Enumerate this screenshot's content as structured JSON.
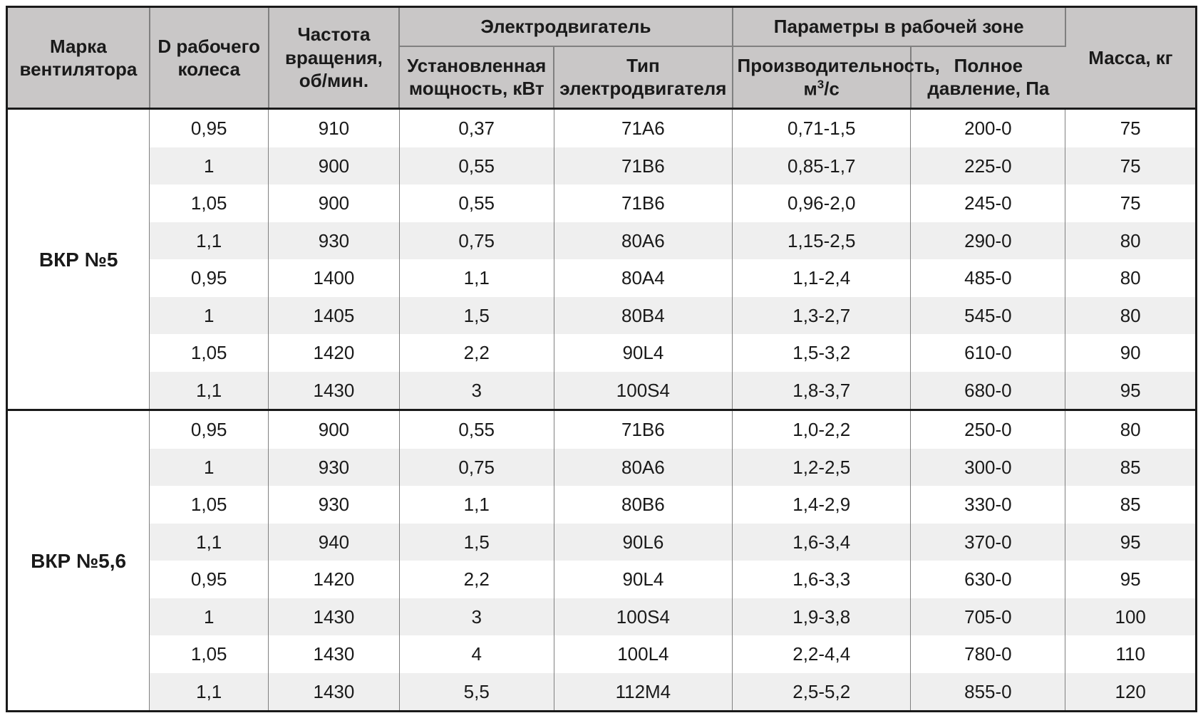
{
  "styling": {
    "header_bg": "#c9c7c7",
    "row_bg_even": "#ffffff",
    "row_bg_odd": "#efefef",
    "outer_border": "3px solid #1a1a1a",
    "header_inner_border": "2px solid #808080",
    "body_col_border": "1px solid #808080",
    "group_divider": "3px solid #1a1a1a",
    "col_widths_pct": [
      12,
      10,
      11,
      13,
      15,
      15,
      13,
      11
    ]
  },
  "headers": {
    "brand": "Марка вентилятора",
    "d_wheel": "D рабочего колеса",
    "rpm": "Частота вращения, об/мин.",
    "motor_group": "Электродвигатель",
    "power": "Установленная мощность, кВт",
    "motor_type": "Тип электродвигателя",
    "zone_group": "Параметры в рабочей зоне",
    "perf_html": "Производительность, м<sup>3</sup>/с",
    "pressure": "Полное давление, Па",
    "mass": "Масса, кг"
  },
  "groups": [
    {
      "label": "ВКР №5",
      "rows": [
        [
          "0,95",
          "910",
          "0,37",
          "71А6",
          "0,71-1,5",
          "200-0",
          "75"
        ],
        [
          "1",
          "900",
          "0,55",
          "71В6",
          "0,85-1,7",
          "225-0",
          "75"
        ],
        [
          "1,05",
          "900",
          "0,55",
          "71В6",
          "0,96-2,0",
          "245-0",
          "75"
        ],
        [
          "1,1",
          "930",
          "0,75",
          "80А6",
          "1,15-2,5",
          "290-0",
          "80"
        ],
        [
          "0,95",
          "1400",
          "1,1",
          "80А4",
          "1,1-2,4",
          "485-0",
          "80"
        ],
        [
          "1",
          "1405",
          "1,5",
          "80В4",
          "1,3-2,7",
          "545-0",
          "80"
        ],
        [
          "1,05",
          "1420",
          "2,2",
          "90L4",
          "1,5-3,2",
          "610-0",
          "90"
        ],
        [
          "1,1",
          "1430",
          "3",
          "100S4",
          "1,8-3,7",
          "680-0",
          "95"
        ]
      ]
    },
    {
      "label": "ВКР №5,6",
      "rows": [
        [
          "0,95",
          "900",
          "0,55",
          "71В6",
          "1,0-2,2",
          "250-0",
          "80"
        ],
        [
          "1",
          "930",
          "0,75",
          "80А6",
          "1,2-2,5",
          "300-0",
          "85"
        ],
        [
          "1,05",
          "930",
          "1,1",
          "80В6",
          "1,4-2,9",
          "330-0",
          "85"
        ],
        [
          "1,1",
          "940",
          "1,5",
          "90L6",
          "1,6-3,4",
          "370-0",
          "95"
        ],
        [
          "0,95",
          "1420",
          "2,2",
          "90L4",
          "1,6-3,3",
          "630-0",
          "95"
        ],
        [
          "1",
          "1430",
          "3",
          "100S4",
          "1,9-3,8",
          "705-0",
          "100"
        ],
        [
          "1,05",
          "1430",
          "4",
          "100L4",
          "2,2-4,4",
          "780-0",
          "110"
        ],
        [
          "1,1",
          "1430",
          "5,5",
          "112М4",
          "2,5-5,2",
          "855-0",
          "120"
        ]
      ]
    }
  ]
}
